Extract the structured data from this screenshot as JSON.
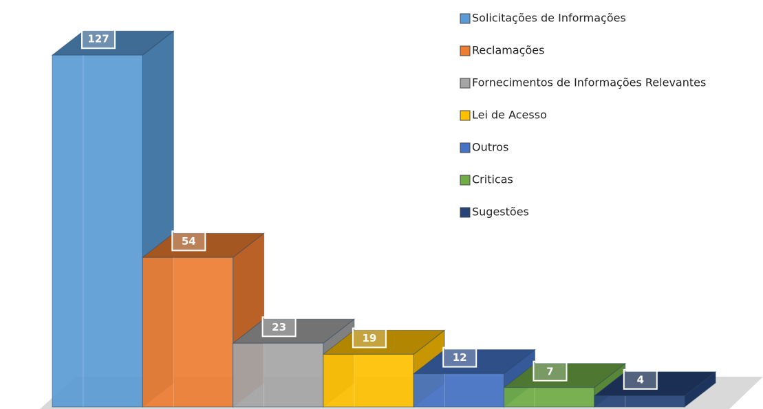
{
  "chart_data": {
    "type": "bar3d",
    "categories": [
      "Solicitações de Informações",
      "Reclamações",
      "Fornecimentos de Informações Relevantes",
      "Lei de Acesso",
      "Outros",
      "Criticas",
      "Sugestões"
    ],
    "values": [
      127,
      54,
      23,
      19,
      12,
      7,
      4
    ],
    "colors": [
      "#5b9bd5",
      "#ed7d31",
      "#a5a5a5",
      "#ffc000",
      "#4472c4",
      "#70ad47",
      "#264478"
    ],
    "legend": "right"
  }
}
